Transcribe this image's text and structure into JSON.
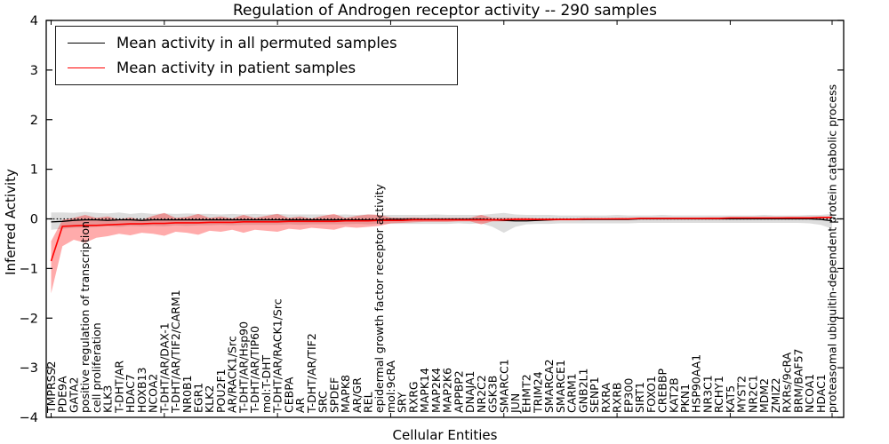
{
  "title": "Regulation of Androgen receptor activity -- 290 samples",
  "axes": {
    "xlabel": "Cellular Entities",
    "ylabel": "Inferred Activity",
    "ytick_labels": [
      "4",
      "3",
      "2",
      "1",
      "0",
      "−1",
      "−2",
      "−3",
      "−4"
    ]
  },
  "legend": [
    {
      "label": "Mean activity in all permuted samples",
      "color": "#000000"
    },
    {
      "label": "Mean activity in patient samples",
      "color": "#ff0000"
    }
  ],
  "colors": {
    "patient_line": "#ff0000",
    "permuted_line": "#000000",
    "permuted_band": "#d9d9d9",
    "patient_band_tint": "#f7a8a8",
    "frame": "#000000"
  },
  "chart_data": {
    "type": "line",
    "title": "Regulation of Androgen receptor activity -- 290 samples",
    "xlabel": "Cellular Entities",
    "ylabel": "Inferred Activity",
    "ylim": [
      -4,
      4
    ],
    "yticks": [
      4,
      3,
      2,
      1,
      0,
      -1,
      -2,
      -3,
      -4
    ],
    "grid": false,
    "legend_position": "upper left",
    "zero_line": true,
    "categories": [
      "TMPRSS2",
      "PDE9A",
      "GATA2",
      "positive regulation of transcription",
      "cell proliferation",
      "KLK3",
      "T-DHT/AR",
      "HDAC7",
      "HOXB13",
      "NCOA2",
      "T-DHT/AR/DAX-1",
      "T-DHT/AR/TIF2/CARM1",
      "NR0B1",
      "EGR1",
      "KLK2",
      "POU2F1",
      "AR/RACK1/Src",
      "T-DHT/AR/Hsp90",
      "T-DHT/AR/TIP60",
      "mol:T-DHT",
      "T-DHT/AR/RACK1/Src",
      "CEBPA",
      "AR",
      "T-DHT/AR/TIF2",
      "SRC",
      "SPDEF",
      "MAPK8",
      "AR/GR",
      "REL",
      "epidermal growth factor receptor activity",
      "mol:9cRA",
      "SRY",
      "RXRG",
      "MAPK14",
      "MAP2K4",
      "MAP2K6",
      "APPBP2",
      "DNAJA1",
      "NR2C2",
      "GSK3B",
      "SMARCC1",
      "JUN",
      "EHMT2",
      "TRIM24",
      "SMARCA2",
      "SMARCE1",
      "CARM1",
      "GNB2L1",
      "SENP1",
      "RXRA",
      "RXRB",
      "EP300",
      "SIRT1",
      "FOXO1",
      "CREBBP",
      "KAT2B",
      "PKN1",
      "HSP90AA1",
      "NR3C1",
      "RCHY1",
      "KAT5",
      "MYST2",
      "NR2C1",
      "MDM2",
      "ZMIZ2",
      "RXRs/9cRA",
      "BRM/BAF57",
      "NCOA1",
      "HDAC1",
      "proteasomal ubiquitin-dependent protein catabolic process"
    ],
    "series": [
      {
        "name": "Mean activity in all permuted samples",
        "color": "#000000",
        "values": [
          -0.06,
          -0.05,
          -0.03,
          -0.02,
          -0.02,
          -0.03,
          -0.02,
          -0.02,
          -0.03,
          -0.02,
          -0.02,
          -0.02,
          -0.02,
          -0.02,
          -0.02,
          -0.02,
          -0.02,
          -0.02,
          -0.02,
          -0.02,
          -0.02,
          -0.02,
          -0.02,
          -0.02,
          -0.02,
          -0.02,
          -0.02,
          -0.02,
          -0.02,
          -0.02,
          -0.01,
          -0.01,
          -0.01,
          -0.01,
          -0.01,
          -0.01,
          -0.01,
          -0.01,
          -0.01,
          -0.02,
          -0.03,
          -0.04,
          -0.04,
          -0.03,
          -0.02,
          -0.01,
          -0.01,
          -0.01,
          -0.01,
          -0.01,
          -0.01,
          -0.01,
          0,
          0,
          0,
          0,
          0,
          0,
          0,
          0,
          0,
          0,
          0,
          0,
          0,
          0,
          0,
          0,
          -0.01,
          -0.04
        ],
        "band_upper": [
          0.13,
          0.13,
          0.12,
          0.14,
          0.12,
          0.11,
          0.13,
          0.1,
          0.12,
          0.1,
          0.11,
          0.1,
          0.11,
          0.1,
          0.1,
          0.09,
          0.1,
          0.09,
          0.1,
          0.09,
          0.1,
          0.09,
          0.09,
          0.09,
          0.09,
          0.08,
          0.09,
          0.08,
          0.09,
          0.08,
          0.08,
          0.08,
          0.08,
          0.08,
          0.09,
          0.08,
          0.08,
          0.08,
          0.08,
          0.1,
          0.12,
          0.09,
          0.08,
          0.08,
          0.08,
          0.07,
          0.07,
          0.07,
          0.07,
          0.07,
          0.08,
          0.07,
          0.07,
          0.07,
          0.08,
          0.07,
          0.07,
          0.07,
          0.07,
          0.07,
          0.07,
          0.07,
          0.07,
          0.08,
          0.07,
          0.07,
          0.07,
          0.08,
          0.08,
          0.1
        ],
        "band_lower": [
          -0.22,
          -0.2,
          -0.18,
          -0.18,
          -0.16,
          -0.15,
          -0.16,
          -0.14,
          -0.15,
          -0.14,
          -0.15,
          -0.13,
          -0.14,
          -0.13,
          -0.13,
          -0.12,
          -0.13,
          -0.12,
          -0.12,
          -0.12,
          -0.12,
          -0.11,
          -0.12,
          -0.11,
          -0.11,
          -0.11,
          -0.11,
          -0.1,
          -0.11,
          -0.1,
          -0.1,
          -0.1,
          -0.1,
          -0.1,
          -0.1,
          -0.1,
          -0.09,
          -0.1,
          -0.09,
          -0.16,
          -0.28,
          -0.16,
          -0.11,
          -0.1,
          -0.1,
          -0.09,
          -0.09,
          -0.09,
          -0.09,
          -0.09,
          -0.09,
          -0.09,
          -0.08,
          -0.08,
          -0.08,
          -0.08,
          -0.08,
          -0.08,
          -0.08,
          -0.08,
          -0.08,
          -0.08,
          -0.08,
          -0.08,
          -0.08,
          -0.08,
          -0.08,
          -0.09,
          -0.12,
          -0.2
        ]
      },
      {
        "name": "Mean activity in patient samples",
        "color": "#ff0000",
        "values": [
          -0.85,
          -0.15,
          -0.14,
          -0.13,
          -0.13,
          -0.12,
          -0.11,
          -0.1,
          -0.1,
          -0.09,
          -0.09,
          -0.08,
          -0.08,
          -0.08,
          -0.07,
          -0.07,
          -0.07,
          -0.06,
          -0.06,
          -0.06,
          -0.06,
          -0.05,
          -0.05,
          -0.05,
          -0.05,
          -0.05,
          -0.04,
          -0.04,
          -0.04,
          -0.03,
          -0.03,
          -0.03,
          -0.02,
          -0.02,
          -0.02,
          -0.02,
          -0.02,
          -0.02,
          -0.02,
          -0.02,
          -0.02,
          -0.01,
          -0.01,
          -0.01,
          -0.01,
          -0.01,
          -0.01,
          0,
          0,
          0,
          0,
          0,
          0.01,
          0.01,
          0.01,
          0.01,
          0.01,
          0.01,
          0.01,
          0.01,
          0.02,
          0.02,
          0.02,
          0.02,
          0.02,
          0.02,
          0.02,
          0.02,
          0.03,
          0.03
        ],
        "band_upper": [
          -0.45,
          -0.02,
          0.02,
          0.08,
          0.02,
          0.05,
          -0.01,
          0.03,
          -0.02,
          0.06,
          0.12,
          0.02,
          0.04,
          0.1,
          0.02,
          0.05,
          0.01,
          0.08,
          0.02,
          0.06,
          0.1,
          0.02,
          0.05,
          0.01,
          0.06,
          0.1,
          0.02,
          0.06,
          0.09,
          0.08,
          0.03,
          0.02,
          0.03,
          0.02,
          0.02,
          0.02,
          0.02,
          0.02,
          0.08,
          0.02,
          0.02,
          0.02,
          0.02,
          0.01,
          0.01,
          0.01,
          0.01,
          0.01,
          0.01,
          0.01,
          0.02,
          0.02,
          0.02,
          0.02,
          0.02,
          0.02,
          0.02,
          0.02,
          0.03,
          0.03,
          0.03,
          0.03,
          0.03,
          0.03,
          0.03,
          0.04,
          0.04,
          0.04,
          0.04,
          0.05
        ],
        "band_lower": [
          -1.5,
          -0.55,
          -0.42,
          -0.48,
          -0.38,
          -0.35,
          -0.3,
          -0.33,
          -0.28,
          -0.3,
          -0.34,
          -0.26,
          -0.28,
          -0.32,
          -0.24,
          -0.26,
          -0.22,
          -0.28,
          -0.22,
          -0.24,
          -0.26,
          -0.2,
          -0.22,
          -0.18,
          -0.2,
          -0.22,
          -0.16,
          -0.18,
          -0.16,
          -0.14,
          -0.09,
          -0.08,
          -0.07,
          -0.06,
          -0.06,
          -0.06,
          -0.05,
          -0.05,
          -0.11,
          -0.05,
          -0.05,
          -0.04,
          -0.04,
          -0.04,
          -0.04,
          -0.03,
          -0.03,
          -0.03,
          -0.02,
          -0.02,
          -0.02,
          -0.02,
          -0.01,
          -0.01,
          -0.01,
          -0.01,
          0,
          0,
          0,
          0,
          0,
          0,
          0.01,
          0.01,
          0.01,
          0.01,
          0.01,
          0.01,
          0.01,
          0.01
        ]
      }
    ]
  }
}
